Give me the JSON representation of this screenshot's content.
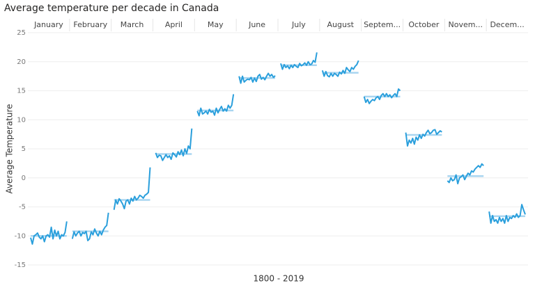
{
  "chart_data": {
    "type": "line",
    "title": "Average temperature per decade in Canada",
    "x_label": "1800 - 2019",
    "y_label": "Average Temperature",
    "ylim": [
      -15,
      25
    ],
    "yticks": [
      -15,
      -10,
      -5,
      0,
      5,
      10,
      15,
      20,
      25
    ],
    "grid": true,
    "color": "#2a9fdc",
    "average_color": "#a9d5f0",
    "panels": [
      {
        "name": "January",
        "average": -10,
        "values": [
          -10.3,
          -11.4,
          -10,
          -9.8,
          -9.5,
          -10.2,
          -10.5,
          -10,
          -11,
          -10,
          -9.8,
          -10.2,
          -8.5,
          -10.5,
          -9,
          -10,
          -9.2,
          -10.5,
          -9.8,
          -10,
          -9.4,
          -7.5
        ]
      },
      {
        "name": "February",
        "average": -9.2,
        "values": [
          -10.5,
          -9.3,
          -10,
          -9.5,
          -9.2,
          -10,
          -9.4,
          -9.6,
          -9.2,
          -10.8,
          -10.5,
          -9.3,
          -9.8,
          -8.8,
          -9.5,
          -10,
          -9.2,
          -9.8,
          -9,
          -8.5,
          -8.2,
          -6
        ]
      },
      {
        "name": "March",
        "average": -3.8,
        "values": [
          -5.5,
          -3.8,
          -4.5,
          -3.6,
          -4,
          -4.5,
          -5.3,
          -4,
          -3.8,
          -4.5,
          -3.5,
          -4,
          -3.2,
          -3.8,
          -3.5,
          -3,
          -3.2,
          -3.5,
          -3,
          -2.8,
          -2.5,
          1.8
        ]
      },
      {
        "name": "April",
        "average": 4.1,
        "values": [
          4.3,
          3.5,
          3.9,
          3.8,
          3.0,
          3.5,
          4.0,
          3.5,
          3.8,
          3.2,
          4.3,
          4.0,
          3.6,
          4.5,
          4.0,
          4.8,
          3.8,
          5.0,
          4.2,
          5.5,
          5.0,
          8.5
        ]
      },
      {
        "name": "May",
        "average": 11.6,
        "values": [
          11.5,
          10.7,
          12,
          11,
          11.2,
          11.5,
          11.0,
          11.8,
          11.3,
          11.5,
          10.8,
          12,
          11.2,
          11.8,
          12.3,
          11.5,
          11.9,
          11.5,
          12.5,
          12,
          12.5,
          14.4
        ]
      },
      {
        "name": "June",
        "average": 17.2,
        "values": [
          17.5,
          16.3,
          17.5,
          16.5,
          16.8,
          17,
          16.9,
          17.3,
          16.5,
          17.2,
          16.6,
          17.5,
          17.8,
          17,
          17.3,
          16.9,
          17.5,
          18,
          17.5,
          17.8,
          17.3,
          17.6
        ]
      },
      {
        "name": "July",
        "average": 19.4,
        "values": [
          19.7,
          18.7,
          19.5,
          19,
          19.3,
          18.8,
          19.4,
          19,
          19.5,
          19.2,
          19,
          19.7,
          19.3,
          19.5,
          19.8,
          19.4,
          20,
          19.5,
          19.6,
          20.2,
          19.9,
          21.6
        ]
      },
      {
        "name": "August",
        "average": 18.1,
        "values": [
          18.5,
          17.5,
          18.3,
          17.6,
          17.4,
          18.0,
          17.5,
          18.0,
          17.8,
          17.5,
          18.2,
          17.9,
          18.5,
          18,
          19,
          18.6,
          18.3,
          19,
          18.7,
          19.2,
          19.5,
          20.2
        ]
      },
      {
        "name": "Septem...",
        "average": 14,
        "values": [
          14,
          13,
          13.5,
          12.8,
          13.2,
          13.5,
          13.3,
          13.8,
          14,
          13.5,
          14.2,
          14.5,
          14,
          14.5,
          14,
          14.3,
          13.8,
          14.2,
          14.5,
          14,
          15.3,
          15
        ]
      },
      {
        "name": "October",
        "average": 7.4,
        "values": [
          7.8,
          5.5,
          6.5,
          6,
          6.8,
          5.8,
          7,
          6.5,
          7.4,
          6.8,
          7.5,
          7.2,
          7.8,
          8.2,
          7.6,
          7.8,
          8.2,
          8.3,
          7.5,
          7.8,
          8.1,
          7.9
        ]
      },
      {
        "name": "Novem...",
        "average": 0.3,
        "values": [
          -0.5,
          -0.8,
          0,
          -0.5,
          -0.3,
          0.5,
          -1,
          0,
          0.2,
          0.5,
          -0.3,
          0.3,
          0.8,
          0.5,
          1.2,
          1,
          1.5,
          1.8,
          2.1,
          1.8,
          2.4,
          2.1
        ]
      },
      {
        "name": "Decem...",
        "average": -6.6,
        "values": [
          -5.8,
          -7.8,
          -6.5,
          -7.5,
          -7.2,
          -7.8,
          -6.8,
          -7.5,
          -7,
          -7.8,
          -6.5,
          -7.5,
          -6.8,
          -7,
          -6.5,
          -6.8,
          -6.2,
          -6.8,
          -6.5,
          -4.6,
          -5.5,
          -6.3
        ]
      }
    ]
  }
}
